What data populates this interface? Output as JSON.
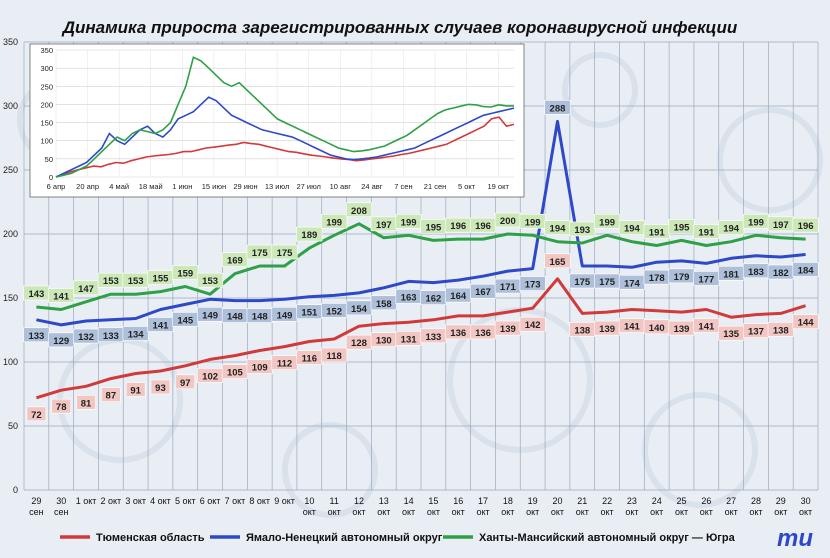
{
  "title": "Динамика прироста зарегистрированных случаев коронавирусной инфекции",
  "colors": {
    "tyumen": "#d23a3a",
    "yamal": "#2e49c8",
    "hmao": "#2ea045",
    "tyumen_label_bg": "#f2c6c2",
    "yamal_label_bg": "#aebfd9",
    "hmao_label_bg": "#cde8b8",
    "grid": "#9aa8bd",
    "background": "#e9eef4"
  },
  "logo": "mu",
  "chart_data": [
    {
      "type": "line",
      "title": "Динамика прироста зарегистрированных случаев коронавирусной инфекции",
      "categories": [
        "29 сен",
        "30 сен",
        "1 окт",
        "2 окт",
        "3 окт",
        "4 окт",
        "5 окт",
        "6 окт",
        "7 окт",
        "8 окт",
        "9 окт",
        "10 окт",
        "11 окт",
        "12 окт",
        "13 окт",
        "14 окт",
        "15 окт",
        "16 окт",
        "17 окт",
        "18 окт",
        "19 окт",
        "20 окт",
        "21 окт",
        "22 окт",
        "23 окт",
        "24 окт",
        "25 окт",
        "26 окт",
        "27 окт",
        "28 окт",
        "29 окт",
        "30 окт"
      ],
      "category_lines": [
        [
          "29",
          "сен"
        ],
        [
          "30",
          "сен"
        ],
        [
          "1 окт",
          ""
        ],
        [
          "2 окт",
          ""
        ],
        [
          "3 окт",
          ""
        ],
        [
          "4 окт",
          ""
        ],
        [
          "5 окт",
          ""
        ],
        [
          "6 окт",
          ""
        ],
        [
          "7 окт",
          ""
        ],
        [
          "8 окт",
          ""
        ],
        [
          "9 окт",
          ""
        ],
        [
          "10",
          "окт"
        ],
        [
          "11",
          "окт"
        ],
        [
          "12",
          "окт"
        ],
        [
          "13",
          "окт"
        ],
        [
          "14",
          "окт"
        ],
        [
          "15",
          "окт"
        ],
        [
          "16",
          "окт"
        ],
        [
          "17",
          "окт"
        ],
        [
          "18",
          "окт"
        ],
        [
          "19",
          "окт"
        ],
        [
          "20",
          "окт"
        ],
        [
          "21",
          "окт"
        ],
        [
          "22",
          "окт"
        ],
        [
          "23",
          "окт"
        ],
        [
          "24",
          "окт"
        ],
        [
          "25",
          "окт"
        ],
        [
          "26",
          "окт"
        ],
        [
          "27",
          "окт"
        ],
        [
          "28",
          "окт"
        ],
        [
          "29",
          "окт"
        ],
        [
          "30",
          "окт"
        ]
      ],
      "series": [
        {
          "name": "Тюменская область",
          "key": "tyumen",
          "values": [
            72,
            78,
            81,
            87,
            91,
            93,
            97,
            102,
            105,
            109,
            112,
            116,
            118,
            128,
            130,
            131,
            133,
            136,
            136,
            139,
            142,
            165,
            138,
            139,
            141,
            140,
            139,
            141,
            135,
            137,
            138,
            144
          ]
        },
        {
          "name": "Ямало-Ненецкий автономный округ",
          "key": "yamal",
          "values": [
            133,
            129,
            132,
            133,
            134,
            141,
            145,
            149,
            148,
            148,
            149,
            151,
            152,
            154,
            158,
            163,
            162,
            164,
            167,
            171,
            173,
            288,
            175,
            175,
            174,
            178,
            179,
            177,
            181,
            183,
            182,
            184
          ]
        },
        {
          "name": "Ханты-Мансийский автономный округ — Югра",
          "key": "hmao",
          "values": [
            143,
            141,
            147,
            153,
            153,
            155,
            159,
            153,
            169,
            175,
            175,
            189,
            199,
            208,
            197,
            199,
            195,
            196,
            196,
            200,
            199,
            194,
            193,
            199,
            194,
            191,
            195,
            191,
            194,
            199,
            197,
            196
          ]
        }
      ],
      "y_ticks": [
        0,
        50,
        100,
        150,
        200,
        250,
        300,
        350
      ],
      "ylim": [
        0,
        350
      ],
      "grid": true,
      "legend": "bottom"
    },
    {
      "type": "line",
      "inset": true,
      "x_ticks": [
        "6 апр",
        "20 апр",
        "4 май",
        "18 май",
        "1 июн",
        "15 июн",
        "29 июн",
        "13 июл",
        "27 июл",
        "10 авг",
        "24 авг",
        "7 сен",
        "21 сен",
        "5 окт",
        "19 окт"
      ],
      "y_ticks": [
        0,
        50,
        100,
        150,
        200,
        250,
        300,
        350
      ],
      "ylim": [
        0,
        350
      ],
      "series": [
        {
          "key": "tyumen",
          "values": [
            0,
            8,
            15,
            20,
            25,
            30,
            28,
            35,
            40,
            38,
            45,
            50,
            55,
            58,
            60,
            62,
            65,
            70,
            70,
            75,
            80,
            82,
            85,
            88,
            90,
            95,
            92,
            90,
            85,
            80,
            75,
            70,
            68,
            64,
            60,
            58,
            55,
            52,
            50,
            48,
            45,
            47,
            50,
            52,
            55,
            58,
            62,
            65,
            70,
            75,
            80,
            85,
            90,
            100,
            110,
            120,
            130,
            140,
            160,
            165,
            140,
            145
          ]
        },
        {
          "key": "yamal",
          "values": [
            0,
            10,
            20,
            30,
            40,
            60,
            80,
            120,
            100,
            90,
            110,
            130,
            140,
            120,
            110,
            130,
            160,
            170,
            180,
            200,
            220,
            210,
            190,
            170,
            160,
            150,
            140,
            130,
            125,
            120,
            115,
            110,
            100,
            90,
            80,
            70,
            60,
            55,
            50,
            48,
            50,
            52,
            55,
            60,
            65,
            70,
            75,
            80,
            90,
            100,
            110,
            120,
            130,
            140,
            150,
            160,
            170,
            175,
            180,
            185,
            190
          ]
        },
        {
          "key": "hmao",
          "values": [
            0,
            5,
            10,
            20,
            30,
            50,
            70,
            90,
            110,
            100,
            120,
            130,
            125,
            120,
            130,
            150,
            200,
            250,
            330,
            320,
            300,
            280,
            260,
            250,
            260,
            240,
            220,
            200,
            180,
            160,
            150,
            140,
            130,
            120,
            110,
            100,
            90,
            80,
            75,
            70,
            72,
            75,
            80,
            85,
            95,
            105,
            115,
            130,
            145,
            160,
            175,
            185,
            190,
            195,
            200,
            199,
            194,
            193,
            199,
            196,
            196
          ]
        }
      ]
    }
  ]
}
